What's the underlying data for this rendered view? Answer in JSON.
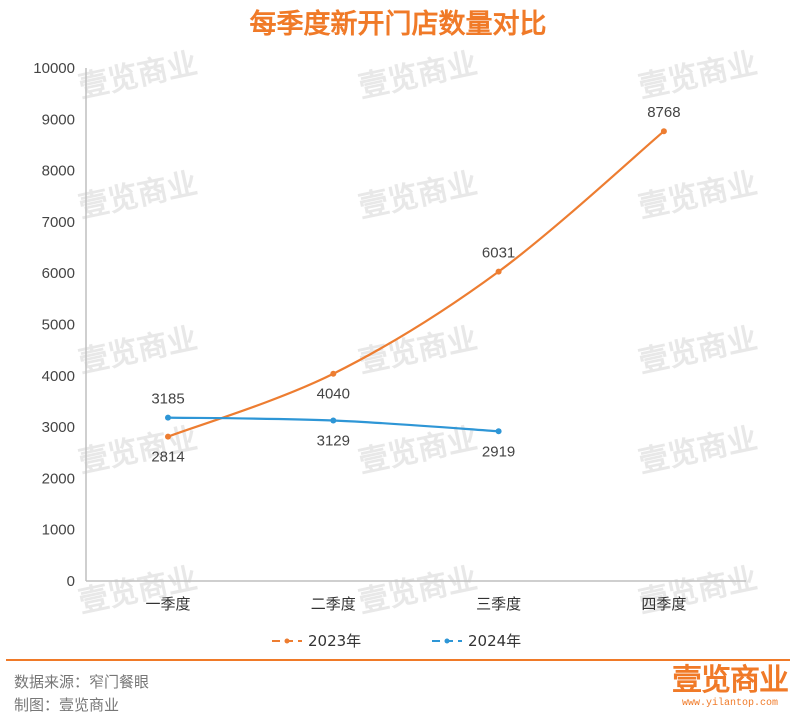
{
  "chart_data": {
    "type": "line",
    "title": "每季度新开门店数量对比",
    "categories": [
      "一季度",
      "二季度",
      "三季度",
      "四季度"
    ],
    "series": [
      {
        "name": "2023年",
        "color": "#ED7D31",
        "values": [
          2814,
          4040,
          6031,
          8768
        ],
        "label_pos": [
          "below",
          "below",
          "above",
          "above"
        ]
      },
      {
        "name": "2024年",
        "color": "#2E96D6",
        "values": [
          3185,
          3129,
          2919,
          null
        ],
        "label_pos": [
          "above",
          "below",
          "below",
          null
        ]
      }
    ],
    "yticks": [
      0,
      1000,
      2000,
      3000,
      4000,
      5000,
      6000,
      7000,
      8000,
      9000,
      10000
    ],
    "ylim": [
      0,
      10000
    ],
    "grid": false,
    "smooth": true,
    "legend_position": "bottom"
  },
  "footer": {
    "source": "数据来源：窄门餐眼",
    "maker": "制图：壹览商业"
  },
  "logo": {
    "text": "壹览商业",
    "url": "www.yilantop.com"
  },
  "watermark": "壹览商业"
}
